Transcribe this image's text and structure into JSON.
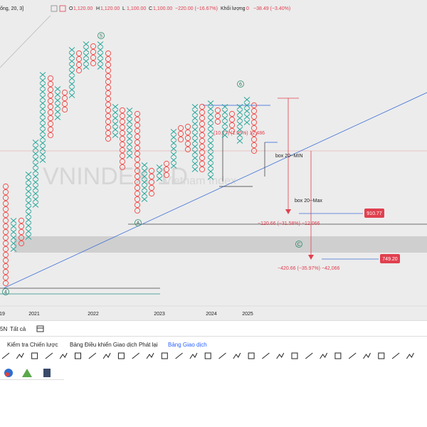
{
  "header": {
    "symbol": "ống, 20, 3]",
    "open_label": "O",
    "open": "1,120.00",
    "high_label": "H",
    "high": "1,120.00",
    "low_label": "L",
    "low": "1,100.00",
    "close_label": "C",
    "close": "1,100.00",
    "change": "−220.00 (−16.67%)",
    "volume_label": "Khối lượng",
    "volume": "0",
    "volume_change": "−38.49 (−3.40%)"
  },
  "watermark": {
    "title": "VNINDEX 1D",
    "subtitle": "Vietnam Index"
  },
  "waves": [
    "5",
    "6",
    "A",
    "C",
    "4"
  ],
  "annotations": {
    "measure_top": "(10.77) (1.95%) 12,486",
    "box_min": "box 20--MIN",
    "box_max": "box 20--Max",
    "measure_1": "−120.66 (−31.58%) −12,066",
    "measure_2": "−420.66 (−35.97%) −42,066",
    "price_1": "910.77",
    "price_2": "749.20"
  },
  "x_axis": [
    "19",
    "2021",
    "2022",
    "2023",
    "2024",
    "2025"
  ],
  "range_bar": {
    "range": "5N",
    "all": "Tất cả"
  },
  "tabs": [
    "Kiểm tra Chiến lược",
    "Bảng Điều khiển Giao dịch Phát lại",
    "Bảng Giao dịch"
  ]
}
